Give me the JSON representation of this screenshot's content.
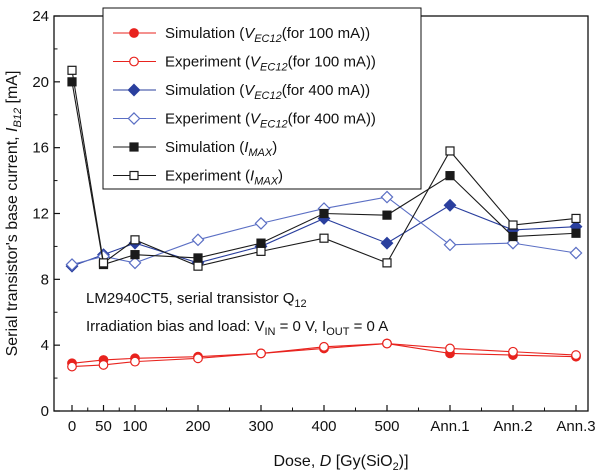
{
  "chart_data": {
    "type": "line",
    "categories": [
      "0",
      "50",
      "100",
      "200",
      "300",
      "400",
      "500",
      "Ann.1",
      "Ann.2",
      "Ann.3"
    ],
    "x": [
      0,
      50,
      100,
      200,
      300,
      400,
      500,
      600,
      700,
      800
    ],
    "xlim": [
      0,
      800
    ],
    "ylim": [
      0,
      24
    ],
    "yticks": [
      0,
      4,
      8,
      12,
      16,
      20,
      24
    ],
    "ytick_labels": [
      "0",
      "4",
      "8",
      "12",
      "16",
      "20",
      "24"
    ],
    "grid": false,
    "legend_position": "top-left",
    "xlabel": {
      "prefix": "Dose, ",
      "var": "D",
      "unit": " [Gy(SiO",
      "sub": "2",
      "close": ")]"
    },
    "ylabel": {
      "prefix": "Serial transistor's base current, ",
      "var": "I",
      "sub": "B12",
      "unit": " [mA]"
    },
    "annotations": [
      {
        "text": "LM2940CT5, serial transistor Q",
        "sub": "12"
      },
      {
        "a": "Irradiation bias and load:  V",
        "s1": "IN",
        "b": " = 0 V,  I",
        "s2": "OUT",
        "c": " = 0 A"
      }
    ],
    "series": [
      {
        "name": "Simulation",
        "param": "V",
        "psub": "EC12",
        "cond": "(for 100 mA)",
        "color": "#e8231e",
        "marker": "circle",
        "filled": true,
        "values": [
          2.9,
          3.1,
          3.2,
          3.3,
          3.5,
          3.8,
          4.1,
          3.5,
          3.4,
          3.3
        ]
      },
      {
        "name": "Experiment",
        "param": "V",
        "psub": "EC12",
        "cond": "(for 100 mA)",
        "color": "#e8231e",
        "marker": "circle",
        "filled": false,
        "values": [
          2.7,
          2.8,
          3.0,
          3.2,
          3.5,
          3.9,
          4.1,
          3.8,
          3.6,
          3.4
        ]
      },
      {
        "name": "Simulation",
        "param": "V",
        "psub": "EC12",
        "cond": "(for 400 mA)",
        "color": "#2a3f9e",
        "marker": "diamond",
        "filled": true,
        "values": [
          8.8,
          9.5,
          10.2,
          9.0,
          10.0,
          11.7,
          10.2,
          12.5,
          11.0,
          11.2
        ]
      },
      {
        "name": "Experiment",
        "param": "V",
        "psub": "EC12",
        "cond": "(for 400 mA)",
        "color": "#5b6fc4",
        "marker": "diamond",
        "filled": false,
        "values": [
          8.9,
          9.4,
          9.0,
          10.4,
          11.4,
          12.3,
          13.0,
          10.1,
          10.2,
          9.6
        ]
      },
      {
        "name": "Simulation",
        "param": "I",
        "psub": "MAX",
        "cond": "",
        "color": "#1a1a1a",
        "marker": "square",
        "filled": true,
        "values": [
          20.0,
          8.9,
          9.5,
          9.3,
          10.2,
          12.0,
          11.9,
          14.3,
          10.6,
          10.8
        ]
      },
      {
        "name": "Experiment",
        "param": "I",
        "psub": "MAX",
        "cond": "",
        "color": "#1a1a1a",
        "marker": "square",
        "filled": false,
        "values": [
          20.7,
          9.0,
          10.4,
          8.8,
          9.7,
          10.5,
          9.0,
          15.8,
          11.3,
          11.7
        ]
      }
    ]
  }
}
